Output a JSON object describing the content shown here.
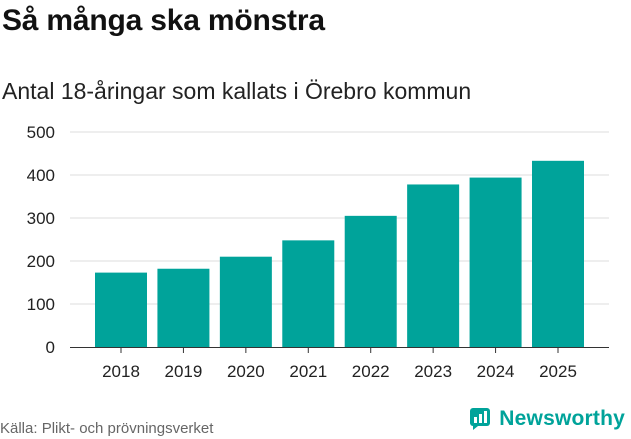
{
  "title": "Så många ska mönstra",
  "subtitle": "Antal 18-åringar som kallats i Örebro kommun",
  "source": "Källa: Plikt- och prövningsverket",
  "brand": {
    "name": "Newsworthy",
    "icon": "newsworthy-logo-icon",
    "color": "#00a39a"
  },
  "colors": {
    "bar": "#00a39a",
    "grid": "#dddddd",
    "axis": "#333333",
    "text": "#222222"
  },
  "chart_data": {
    "type": "bar",
    "title": "Så många ska mönstra",
    "subtitle": "Antal 18-åringar som kallats i Örebro kommun",
    "xlabel": "",
    "ylabel": "",
    "categories": [
      "2018",
      "2019",
      "2020",
      "2021",
      "2022",
      "2023",
      "2024",
      "2025"
    ],
    "values": [
      173,
      182,
      210,
      248,
      305,
      378,
      394,
      433
    ],
    "ylim": [
      0,
      500
    ],
    "yticks": [
      0,
      100,
      200,
      300,
      400,
      500
    ],
    "grid": true,
    "legend": "none"
  }
}
